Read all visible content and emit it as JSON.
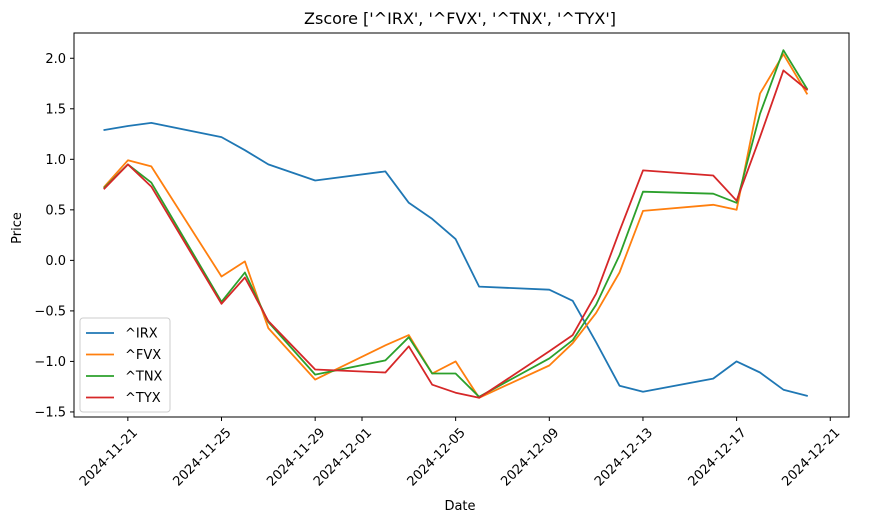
{
  "chart_data": {
    "type": "line",
    "title": "Zscore ['^IRX', '^FVX', '^TNX', '^TYX']",
    "xlabel": "Date",
    "ylabel": "Price",
    "ylim": [
      -1.55,
      2.25
    ],
    "xlim_days": [
      -1.3,
      31.8
    ],
    "x_origin": "2024-11-20",
    "x_ticks": [
      {
        "day": 1,
        "label": "2024-11-21"
      },
      {
        "day": 5,
        "label": "2024-11-25"
      },
      {
        "day": 9,
        "label": "2024-11-29"
      },
      {
        "day": 11,
        "label": "2024-12-01"
      },
      {
        "day": 15,
        "label": "2024-12-05"
      },
      {
        "day": 19,
        "label": "2024-12-09"
      },
      {
        "day": 23,
        "label": "2024-12-13"
      },
      {
        "day": 27,
        "label": "2024-12-17"
      },
      {
        "day": 31,
        "label": "2024-12-21"
      }
    ],
    "y_ticks": [
      {
        "value": 2.0,
        "label": "2.0"
      },
      {
        "value": 1.5,
        "label": "1.5"
      },
      {
        "value": 1.0,
        "label": "1.0"
      },
      {
        "value": 0.5,
        "label": "0.5"
      },
      {
        "value": 0.0,
        "label": "0.0"
      },
      {
        "value": -0.5,
        "label": "−0.5"
      },
      {
        "value": -1.0,
        "label": "−1.0"
      },
      {
        "value": -1.5,
        "label": "−1.5"
      }
    ],
    "legend_position": "lower-left",
    "x_days": [
      0,
      1,
      2,
      5,
      6,
      7,
      9,
      12,
      13,
      14,
      15,
      16,
      19,
      20,
      21,
      22,
      23,
      26,
      27,
      28,
      29,
      30
    ],
    "series": [
      {
        "name": "^IRX",
        "color": "#1f77b4",
        "values": [
          1.29,
          1.33,
          1.36,
          1.22,
          1.09,
          0.95,
          0.79,
          0.88,
          0.57,
          0.41,
          0.21,
          -0.26,
          -0.29,
          -0.4,
          -0.81,
          -1.24,
          -1.3,
          -1.17,
          -1.0,
          -1.11,
          -1.28,
          -1.34
        ]
      },
      {
        "name": "^FVX",
        "color": "#ff7f0e",
        "values": [
          0.73,
          0.99,
          0.93,
          -0.16,
          -0.01,
          -0.67,
          -1.18,
          -0.84,
          -0.74,
          -1.12,
          -1.0,
          -1.36,
          -1.04,
          -0.82,
          -0.52,
          -0.12,
          0.49,
          0.55,
          0.5,
          1.65,
          2.04,
          1.65
        ]
      },
      {
        "name": "^TNX",
        "color": "#2ca02c",
        "values": [
          0.72,
          0.95,
          0.77,
          -0.41,
          -0.12,
          -0.61,
          -1.13,
          -0.99,
          -0.76,
          -1.12,
          -1.12,
          -1.35,
          -0.97,
          -0.79,
          -0.44,
          0.05,
          0.68,
          0.66,
          0.57,
          1.45,
          2.08,
          1.7
        ]
      },
      {
        "name": "^TYX",
        "color": "#d62728",
        "values": [
          0.71,
          0.95,
          0.73,
          -0.43,
          -0.17,
          -0.6,
          -1.08,
          -1.11,
          -0.85,
          -1.23,
          -1.31,
          -1.36,
          -0.9,
          -0.74,
          -0.33,
          0.29,
          0.89,
          0.84,
          0.59,
          1.22,
          1.88,
          1.69
        ]
      }
    ]
  }
}
